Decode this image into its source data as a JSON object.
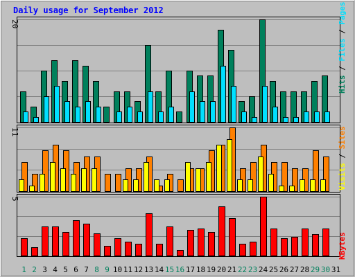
{
  "title": "Daily usage for September 2012",
  "colors": {
    "hits": "#00805c",
    "files": "#00e0ff",
    "visits": "#ffff00",
    "sites": "#ff8000",
    "kbytes": "#ff0000",
    "weekday_label": "#000000",
    "weekend_label": "#00805c",
    "slash": "#000000",
    "panel_bg": "#bebebe",
    "frame_bg": "#c0c0c0",
    "title": "#0000ff"
  },
  "legends": {
    "top": [
      {
        "text": "Hits",
        "key": "hits"
      },
      {
        "text": " / ",
        "key": "slash"
      },
      {
        "text": "Files",
        "key": "files"
      },
      {
        "text": " / ",
        "key": "slash"
      },
      {
        "text": "Pages",
        "key": "files"
      }
    ],
    "middle": [
      {
        "text": "Visits",
        "key": "visits"
      },
      {
        "text": " / ",
        "key": "slash"
      },
      {
        "text": "Sites",
        "key": "sites"
      }
    ],
    "bottom": [
      {
        "text": "KBytes",
        "key": "kbytes"
      }
    ]
  },
  "chart_data": [
    {
      "type": "bar",
      "panel": "top",
      "ymax_label": "20",
      "ylim": [
        0,
        20
      ],
      "x": [
        1,
        2,
        3,
        4,
        5,
        6,
        7,
        8,
        9,
        10,
        11,
        12,
        13,
        14,
        15,
        16,
        17,
        18,
        19,
        20,
        21,
        22,
        23,
        24,
        25,
        26,
        27,
        28,
        29,
        30,
        31
      ],
      "series": [
        {
          "name": "Hits",
          "color_key": "hits",
          "values": [
            6,
            3,
            10,
            12,
            8,
            12,
            11,
            8,
            3,
            6,
            6,
            4,
            15,
            6,
            10,
            2,
            10,
            9,
            9,
            18,
            14,
            4,
            5,
            20,
            8,
            6,
            6,
            6,
            8,
            9,
            0
          ]
        },
        {
          "name": "Files",
          "color_key": "files",
          "values": [
            2,
            1,
            5,
            7,
            4,
            3,
            4,
            3,
            0,
            2,
            3,
            2,
            6,
            2,
            3,
            0,
            6,
            4,
            4,
            11,
            7,
            2,
            1,
            7,
            3,
            1,
            1,
            2,
            2,
            2,
            0
          ]
        },
        {
          "name": "Pages",
          "color_key": "files",
          "values": [
            2,
            1,
            5,
            7,
            4,
            3,
            4,
            3,
            0,
            2,
            3,
            2,
            6,
            2,
            3,
            0,
            6,
            4,
            4,
            11,
            7,
            2,
            1,
            7,
            3,
            1,
            1,
            2,
            2,
            2,
            0
          ]
        }
      ]
    },
    {
      "type": "bar",
      "panel": "middle",
      "ymax_label": "11",
      "ylim": [
        0,
        11
      ],
      "x": [
        1,
        2,
        3,
        4,
        5,
        6,
        7,
        8,
        9,
        10,
        11,
        12,
        13,
        14,
        15,
        16,
        17,
        18,
        19,
        20,
        21,
        22,
        23,
        24,
        25,
        26,
        27,
        28,
        29,
        30,
        31
      ],
      "series": [
        {
          "name": "Visits",
          "color_key": "visits",
          "values": [
            2,
            1,
            3,
            5,
            4,
            3,
            4,
            4,
            0,
            0,
            2,
            2,
            5,
            2,
            2,
            0,
            5,
            4,
            5,
            8,
            9,
            2,
            2,
            6,
            3,
            1,
            1,
            2,
            2,
            2,
            0
          ]
        },
        {
          "name": "Sites",
          "color_key": "sites",
          "values": [
            5,
            3,
            7,
            8,
            7,
            5,
            6,
            6,
            3,
            3,
            4,
            4,
            6,
            1,
            3,
            2,
            4,
            4,
            7,
            8,
            11,
            4,
            5,
            8,
            5,
            5,
            4,
            4,
            7,
            6,
            0
          ]
        }
      ]
    },
    {
      "type": "bar",
      "panel": "bottom",
      "ymax_label": "5",
      "ylim": [
        0,
        5
      ],
      "x": [
        1,
        2,
        3,
        4,
        5,
        6,
        7,
        8,
        9,
        10,
        11,
        12,
        13,
        14,
        15,
        16,
        17,
        18,
        19,
        20,
        21,
        22,
        23,
        24,
        25,
        26,
        27,
        28,
        29,
        30,
        31
      ],
      "series": [
        {
          "name": "KBytes",
          "color_key": "kbytes",
          "values": [
            1.5,
            0.7,
            2.5,
            2.5,
            2.0,
            3.0,
            2.7,
            1.9,
            0.8,
            1.5,
            1.2,
            1.0,
            3.6,
            1.0,
            2.5,
            0.5,
            2.2,
            2.3,
            2.0,
            4.2,
            3.2,
            1.0,
            1.2,
            5.0,
            2.3,
            1.5,
            1.6,
            2.3,
            1.8,
            2.3,
            0
          ]
        }
      ]
    }
  ],
  "weekend_days": [
    1,
    2,
    8,
    9,
    15,
    16,
    22,
    23,
    29,
    30
  ]
}
